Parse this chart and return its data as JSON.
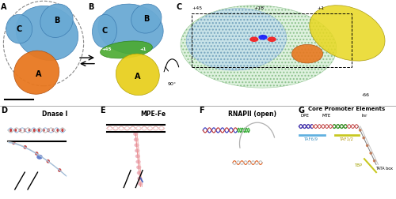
{
  "figure_width": 5.0,
  "figure_height": 2.52,
  "dpi": 100,
  "bg_color": "#ffffff",
  "label_fontsize": 7,
  "title_fontsize": 5.5,
  "colors": {
    "blue_lobe": "#6aaad4",
    "orange_lobe": "#e87820",
    "green_lobe": "#4aaa30",
    "yellow_lobe": "#e8d020",
    "mesh_color": "#90c890",
    "dna_blue": "#4040c0",
    "dna_red": "#c04040",
    "dna_green": "#40a040",
    "dna_pink": "#e08080",
    "dna_gray": "#c0c0c0",
    "dna_orange": "#e08020",
    "separator_color": "#888888",
    "text_color": "#000000",
    "arrow_color": "#000000",
    "dashed_color": "#888888",
    "tbp_color": "#c8c820",
    "taf69_color": "#60b0e0",
    "taf12_color": "#c8c820",
    "scale_bar_color": "#000000"
  },
  "panel_C_labels": [
    "+45",
    "+18",
    "+1",
    "-66"
  ],
  "panel_G_labels": [
    "DPE",
    "MTE",
    "Inr",
    "TAF6/9",
    "TAF1/2",
    "TBP",
    "TATA box"
  ]
}
